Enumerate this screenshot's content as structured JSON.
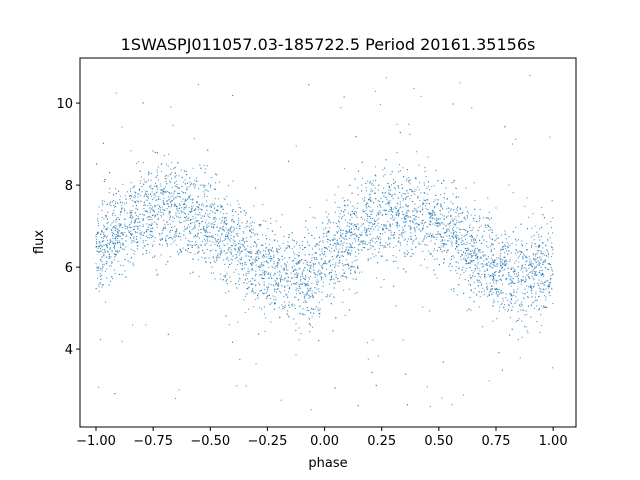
{
  "chart_data": {
    "type": "scatter",
    "title": "1SWASPJ011057.03-185722.5 Period 20161.35156s",
    "xlabel": "phase",
    "ylabel": "flux",
    "xlim": [
      -1.07,
      1.1
    ],
    "ylim": [
      2.1,
      11.1
    ],
    "xticks": [
      -1.0,
      -0.75,
      -0.5,
      -0.25,
      0.0,
      0.25,
      0.5,
      0.75,
      1.0
    ],
    "xtick_labels": [
      "−1.00",
      "−0.75",
      "−0.50",
      "−0.25",
      "0.00",
      "0.25",
      "0.50",
      "0.75",
      "1.00"
    ],
    "yticks": [
      4,
      6,
      8,
      10
    ],
    "ytick_labels": [
      "4",
      "6",
      "8",
      "10"
    ],
    "grid": false,
    "marker_color": "#1f77b4",
    "series": [
      {
        "x": [
          -1.0,
          -0.9,
          -0.8,
          -0.7,
          -0.6,
          -0.5,
          -0.4,
          -0.3,
          -0.2,
          -0.1,
          0.0,
          0.1,
          0.2,
          0.3,
          0.4,
          0.5,
          0.6,
          0.7,
          0.8,
          0.9,
          1.0
        ],
        "y": [
          6.3,
          6.9,
          7.3,
          7.5,
          7.3,
          7.0,
          6.6,
          6.1,
          5.8,
          5.7,
          6.0,
          6.6,
          7.1,
          7.4,
          7.3,
          7.0,
          6.6,
          6.1,
          5.8,
          5.8,
          6.1
        ],
        "scatter_sd": 0.55,
        "approx_points": 5200,
        "outlier_range": [
          2.5,
          10.7
        ]
      }
    ]
  }
}
